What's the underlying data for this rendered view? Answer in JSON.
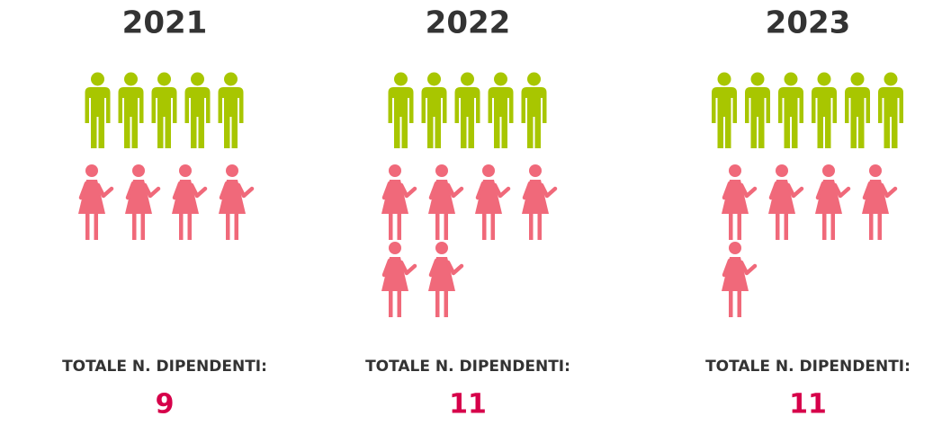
{
  "chart_data": {
    "type": "pictogram",
    "men_color": "#a8c600",
    "women_color": "#f0697a",
    "total_color": "#d6004a",
    "panels": [
      {
        "year": "2021",
        "men": 5,
        "women": 4,
        "total_label": "TOTALE N. DIPENDENTI:",
        "total": 9
      },
      {
        "year": "2022",
        "men": 5,
        "women": 6,
        "total_label": "TOTALE N. DIPENDENTI:",
        "total": 11
      },
      {
        "year": "2023",
        "men": 6,
        "women": 5,
        "total_label": "TOTALE N. DIPENDENTI:",
        "total": 11
      }
    ]
  }
}
